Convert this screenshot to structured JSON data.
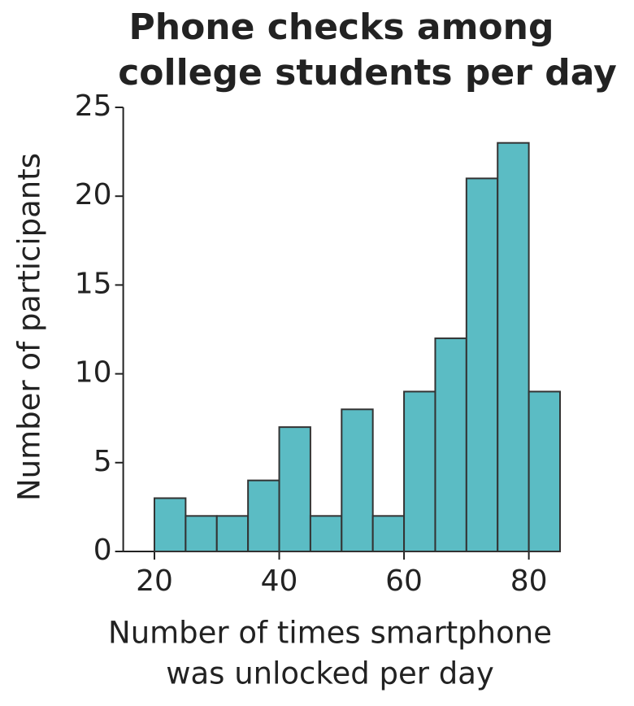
{
  "chart_data": {
    "type": "histogram",
    "title": [
      "Phone checks among",
      "college students per day"
    ],
    "xlabel": [
      "Number of times smartphone",
      "was unlocked per day"
    ],
    "ylabel": "Number of participants",
    "bins": [
      20,
      25,
      30,
      35,
      40,
      45,
      50,
      55,
      60,
      65,
      70,
      75,
      80,
      85
    ],
    "counts": [
      3,
      2,
      2,
      4,
      7,
      2,
      8,
      2,
      9,
      12,
      21,
      23,
      9
    ],
    "color": "#5bbcc4",
    "xlim": [
      15,
      85
    ],
    "xticks": [
      20,
      40,
      60,
      80
    ],
    "ylim": [
      0,
      25
    ],
    "yticks": [
      0,
      5,
      10,
      15,
      20,
      25
    ]
  }
}
